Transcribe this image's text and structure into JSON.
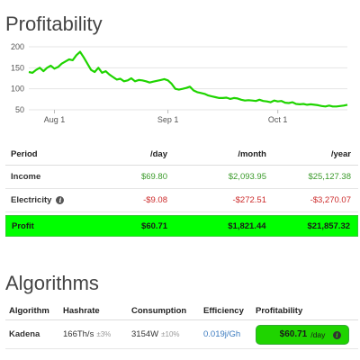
{
  "profitability": {
    "title": "Profitability",
    "table": {
      "headers": [
        "Period",
        "/day",
        "/month",
        "/year"
      ],
      "rows": [
        {
          "label": "Income",
          "day": "$69.80",
          "month": "$2,093.95",
          "year": "$25,127.38"
        },
        {
          "label": "Electricity",
          "day": "-$9.08",
          "month": "-$272.51",
          "year": "-$3,270.07"
        },
        {
          "label": "Profit",
          "day": "$60.71",
          "month": "$1,821.44",
          "year": "$21,857.32"
        }
      ]
    }
  },
  "algorithms": {
    "title": "Algorithms",
    "headers": [
      "Algorithm",
      "Hashrate",
      "Consumption",
      "Efficiency",
      "Profitability"
    ],
    "row": {
      "algorithm": "Kadena",
      "hashrate": "166Th/s",
      "hashrate_tol": "±3%",
      "consumption": "3154W",
      "consumption_tol": "±10%",
      "efficiency": "0.019j/Gh",
      "profit_value": "$60.71",
      "profit_unit": "/day"
    }
  },
  "colors": {
    "line": "#1fd400",
    "profit_row": "#00ff00",
    "positive": "#3a9a2a",
    "negative": "#cc2a2a"
  },
  "icons": [
    "info-icon"
  ],
  "chart_data": {
    "type": "line",
    "title": "",
    "xlabel": "",
    "ylabel": "",
    "xlim": [
      "2020-07-25",
      "2020-10-20"
    ],
    "ylim": [
      50,
      200
    ],
    "y_ticks": [
      50,
      100,
      150,
      200
    ],
    "x_ticks": [
      {
        "label": "Aug 1",
        "date": "2020-08-01"
      },
      {
        "label": "Sep 1",
        "date": "2020-09-01"
      },
      {
        "label": "Oct 1",
        "date": "2020-10-01"
      }
    ],
    "grid": true,
    "legend": "none",
    "series": [
      {
        "x": [
          "2020-07-25",
          "2020-07-26",
          "2020-07-27",
          "2020-07-28",
          "2020-07-29",
          "2020-07-30",
          "2020-07-31",
          "2020-08-01",
          "2020-08-02",
          "2020-08-03",
          "2020-08-04",
          "2020-08-05",
          "2020-08-06",
          "2020-08-07",
          "2020-08-08",
          "2020-08-09",
          "2020-08-10",
          "2020-08-11",
          "2020-08-12",
          "2020-08-13",
          "2020-08-14",
          "2020-08-15",
          "2020-08-16",
          "2020-08-17",
          "2020-08-18",
          "2020-08-19",
          "2020-08-20",
          "2020-08-21",
          "2020-08-22",
          "2020-08-23",
          "2020-08-24",
          "2020-08-25",
          "2020-08-26",
          "2020-08-27",
          "2020-08-28",
          "2020-08-29",
          "2020-08-30",
          "2020-08-31",
          "2020-09-01",
          "2020-09-02",
          "2020-09-03",
          "2020-09-04",
          "2020-09-05",
          "2020-09-06",
          "2020-09-07",
          "2020-09-08",
          "2020-09-09",
          "2020-09-10",
          "2020-09-11",
          "2020-09-12",
          "2020-09-13",
          "2020-09-14",
          "2020-09-15",
          "2020-09-16",
          "2020-09-17",
          "2020-09-18",
          "2020-09-19",
          "2020-09-20",
          "2020-09-21",
          "2020-09-22",
          "2020-09-23",
          "2020-09-24",
          "2020-09-25",
          "2020-09-26",
          "2020-09-27",
          "2020-09-28",
          "2020-09-29",
          "2020-09-30",
          "2020-10-01",
          "2020-10-02",
          "2020-10-03",
          "2020-10-04",
          "2020-10-05",
          "2020-10-06",
          "2020-10-07",
          "2020-10-08",
          "2020-10-09",
          "2020-10-10",
          "2020-10-11",
          "2020-10-12",
          "2020-10-13",
          "2020-10-14",
          "2020-10-15",
          "2020-10-16",
          "2020-10-17",
          "2020-10-18",
          "2020-10-19",
          "2020-10-20"
        ],
        "y": [
          140,
          138,
          145,
          150,
          142,
          150,
          155,
          148,
          152,
          160,
          165,
          170,
          168,
          180,
          188,
          175,
          160,
          145,
          140,
          150,
          138,
          142,
          134,
          128,
          122,
          124,
          118,
          120,
          125,
          118,
          121,
          120,
          118,
          115,
          117,
          119,
          121,
          123,
          120,
          112,
          100,
          98,
          100,
          102,
          105,
          96,
          92,
          90,
          88,
          84,
          82,
          80,
          78,
          78,
          79,
          76,
          78,
          77,
          74,
          72,
          73,
          72,
          71,
          74,
          71,
          70,
          68,
          72,
          70,
          71,
          67,
          66,
          68,
          64,
          63,
          64,
          62,
          63,
          62,
          61,
          59,
          58,
          60,
          58,
          58,
          59,
          60,
          62
        ]
      }
    ]
  }
}
